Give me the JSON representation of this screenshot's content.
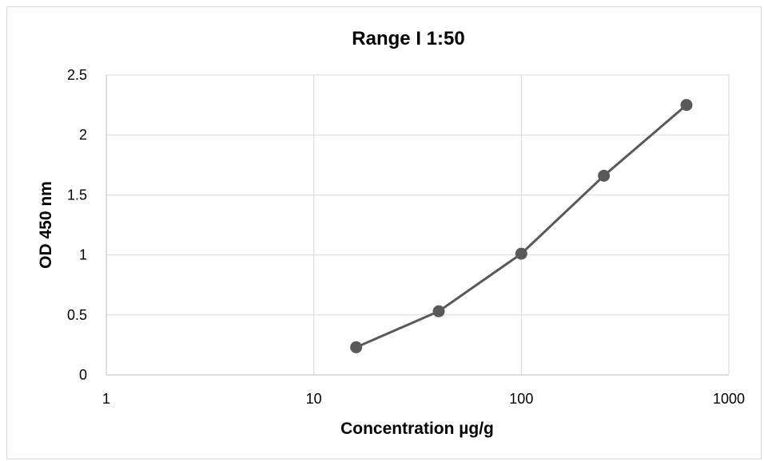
{
  "chart_data": {
    "type": "line",
    "title": "Range I 1:50",
    "xlabel": "Concentration µg/g",
    "ylabel": "OD 450 nm",
    "x_scale": "log",
    "xlim": [
      1,
      1000
    ],
    "ylim": [
      0,
      2.5
    ],
    "x_ticks": [
      "1",
      "10",
      "100",
      "1000"
    ],
    "y_ticks": [
      "0",
      "0.5",
      "1",
      "1.5",
      "2",
      "2.5"
    ],
    "grid": true,
    "legend": "none",
    "series": [
      {
        "color": "#595959",
        "x": [
          16,
          40,
          100,
          250,
          625
        ],
        "y": [
          0.23,
          0.53,
          1.01,
          1.66,
          2.25
        ]
      }
    ]
  }
}
